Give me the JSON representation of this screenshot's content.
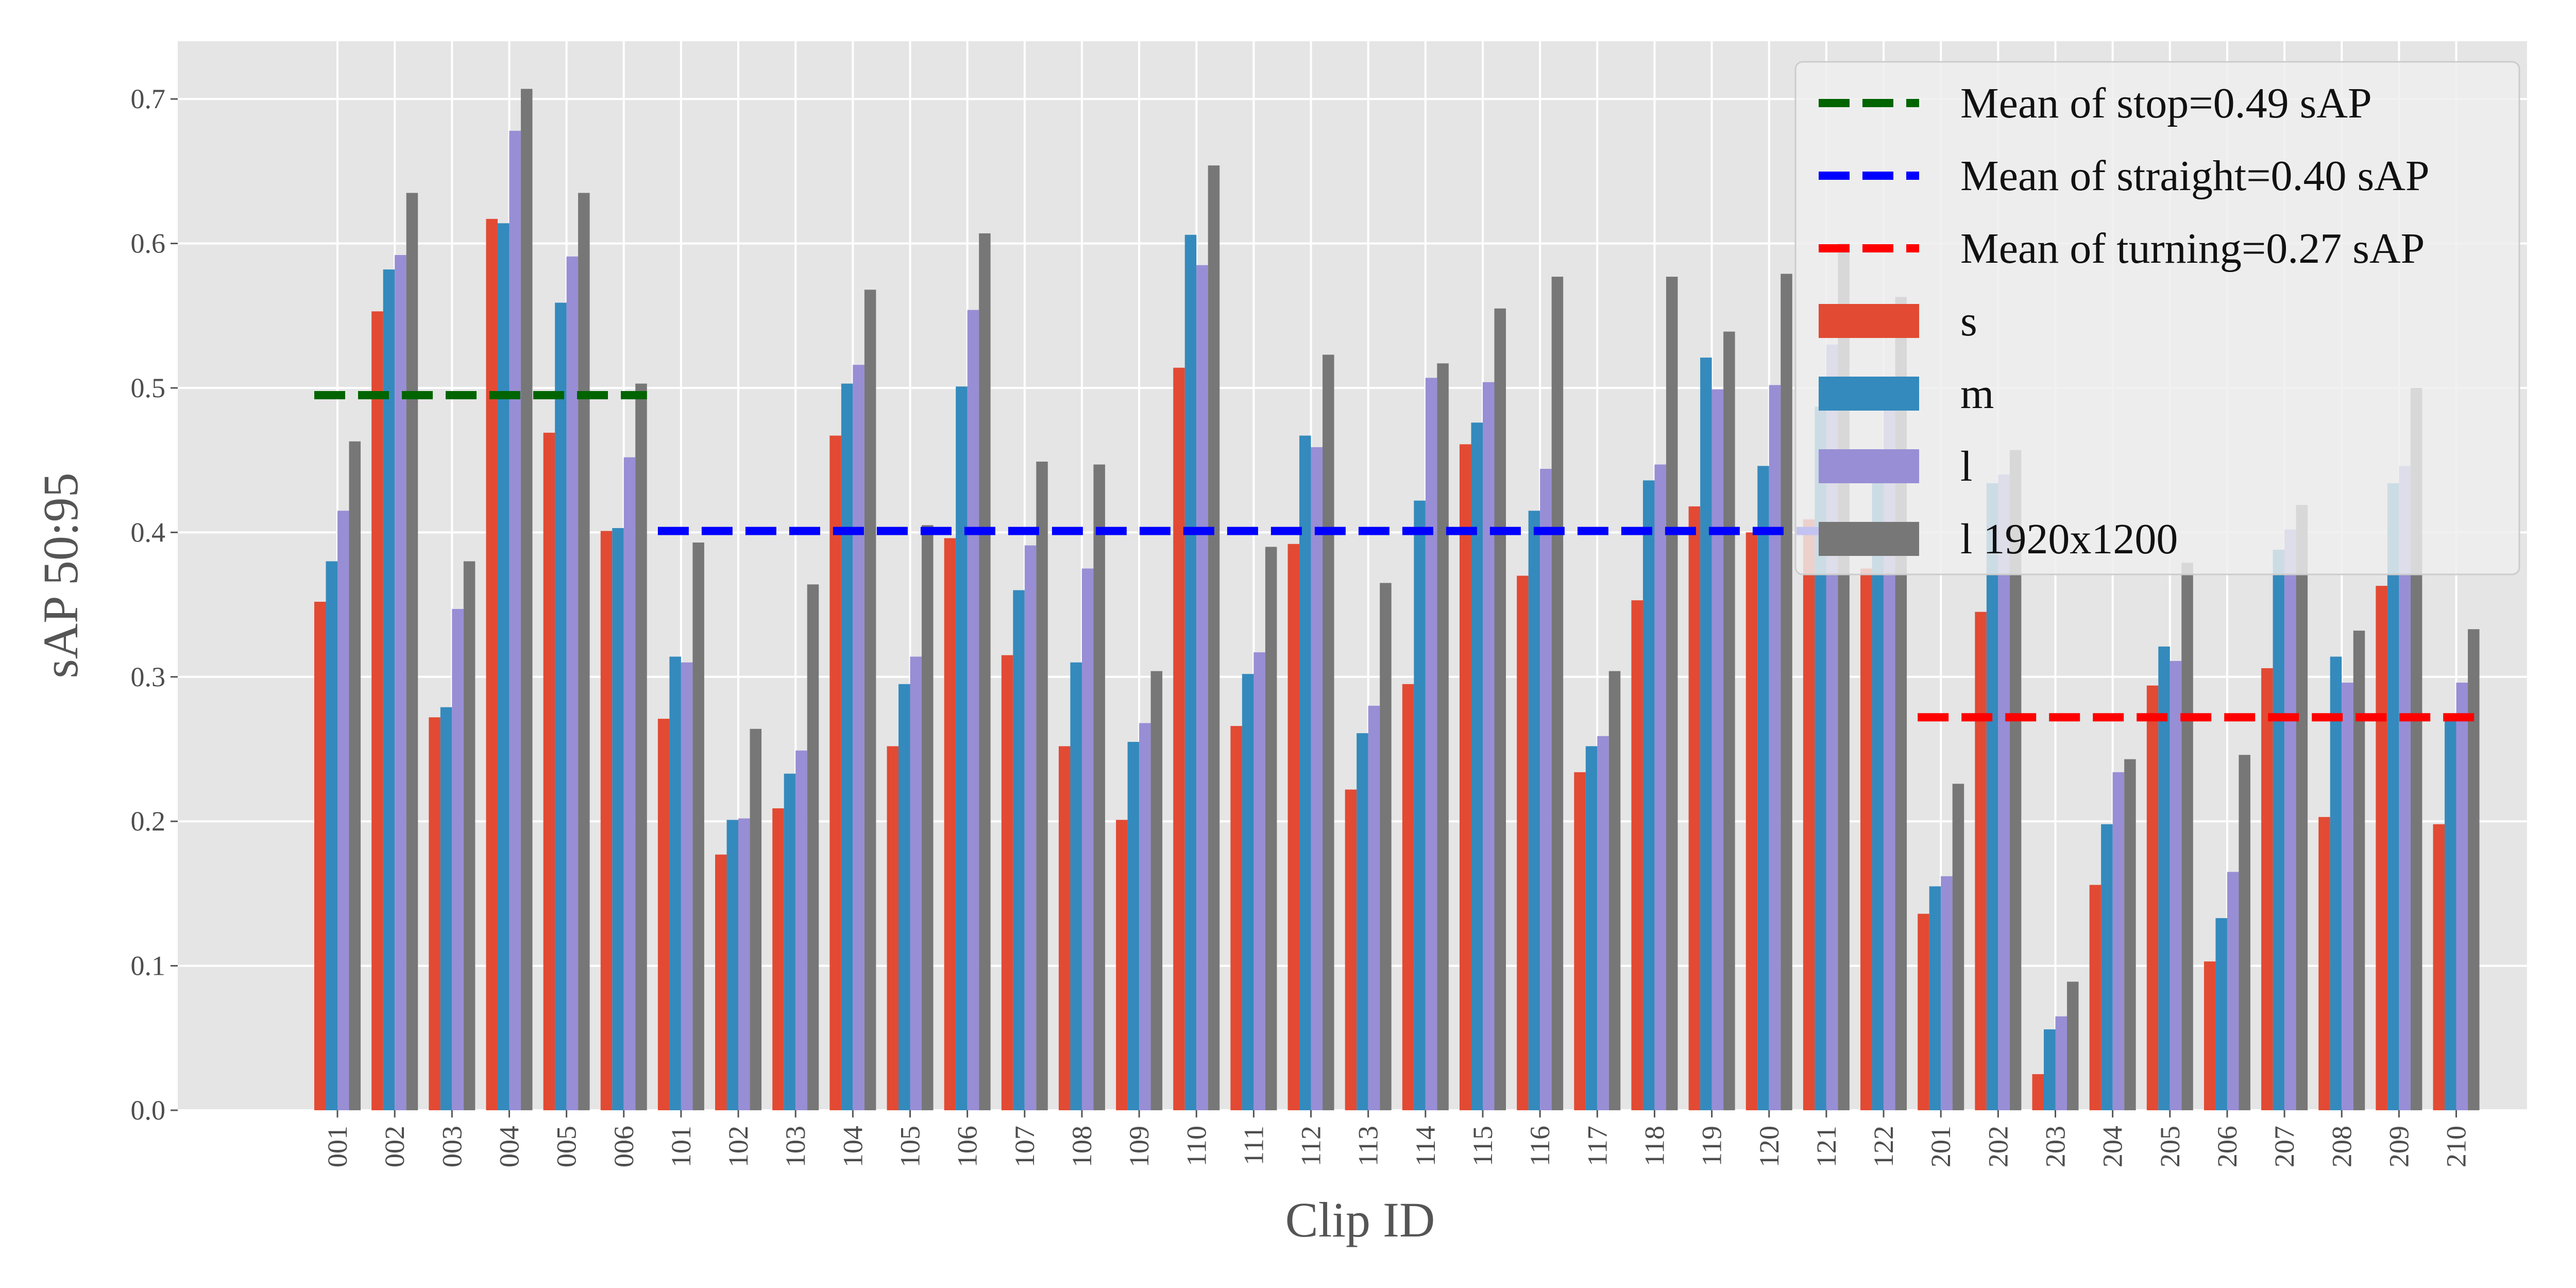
{
  "chart_data": {
    "type": "bar",
    "xlabel": "Clip ID",
    "ylabel": "sAP 50:95",
    "ylim": [
      0,
      0.74
    ],
    "yticks": [
      "0.0",
      "0.1",
      "0.2",
      "0.3",
      "0.4",
      "0.5",
      "0.6",
      "0.7"
    ],
    "grid": true,
    "legend_position": "top-right",
    "categories": [
      "001",
      "002",
      "003",
      "004",
      "005",
      "006",
      "101",
      "102",
      "103",
      "104",
      "105",
      "106",
      "107",
      "108",
      "109",
      "110",
      "111",
      "112",
      "113",
      "114",
      "115",
      "116",
      "117",
      "118",
      "119",
      "120",
      "121",
      "122",
      "201",
      "202",
      "203",
      "204",
      "205",
      "206",
      "207",
      "208",
      "209",
      "210"
    ],
    "series": [
      {
        "name": "s",
        "color": "#e24a33",
        "values": [
          0.352,
          0.553,
          0.272,
          0.617,
          0.469,
          0.401,
          0.271,
          0.177,
          0.209,
          0.467,
          0.252,
          0.396,
          0.315,
          0.252,
          0.201,
          0.514,
          0.266,
          0.392,
          0.222,
          0.295,
          0.461,
          0.37,
          0.234,
          0.353,
          0.418,
          0.4,
          0.409,
          0.375,
          0.136,
          0.345,
          0.025,
          0.156,
          0.294,
          0.103,
          0.306,
          0.203,
          0.363,
          0.198
        ]
      },
      {
        "name": "m",
        "color": "#348abd",
        "values": [
          0.38,
          0.582,
          0.279,
          0.614,
          0.559,
          0.403,
          0.314,
          0.201,
          0.233,
          0.503,
          0.295,
          0.501,
          0.36,
          0.31,
          0.255,
          0.606,
          0.302,
          0.467,
          0.261,
          0.422,
          0.476,
          0.415,
          0.252,
          0.436,
          0.521,
          0.446,
          0.487,
          0.45,
          0.155,
          0.434,
          0.056,
          0.198,
          0.321,
          0.133,
          0.388,
          0.314,
          0.434,
          0.27
        ]
      },
      {
        "name": "l",
        "color": "#988ed5",
        "values": [
          0.415,
          0.592,
          0.347,
          0.678,
          0.591,
          0.452,
          0.31,
          0.202,
          0.249,
          0.516,
          0.314,
          0.554,
          0.391,
          0.375,
          0.268,
          0.585,
          0.317,
          0.459,
          0.28,
          0.507,
          0.504,
          0.444,
          0.259,
          0.447,
          0.499,
          0.502,
          0.53,
          0.5,
          0.162,
          0.44,
          0.065,
          0.234,
          0.311,
          0.165,
          0.402,
          0.296,
          0.446,
          0.296
        ]
      },
      {
        "name": "l 1920x1200",
        "color": "#777777",
        "values": [
          0.463,
          0.635,
          0.38,
          0.707,
          0.635,
          0.503,
          0.393,
          0.264,
          0.364,
          0.568,
          0.405,
          0.607,
          0.449,
          0.447,
          0.304,
          0.654,
          0.39,
          0.523,
          0.365,
          0.517,
          0.555,
          0.577,
          0.304,
          0.577,
          0.539,
          0.579,
          0.6,
          0.563,
          0.226,
          0.457,
          0.089,
          0.243,
          0.379,
          0.246,
          0.419,
          0.332,
          0.5,
          0.333
        ]
      }
    ],
    "mean_lines": [
      {
        "label": "Mean of stop=0.49 sAP",
        "color": "#006400",
        "value": 0.495,
        "from": "001",
        "to": "006"
      },
      {
        "label": "Mean of straight=0.40 sAP",
        "color": "#0000ff",
        "value": 0.401,
        "from": "101",
        "to": "122"
      },
      {
        "label": "Mean of turning=0.27 sAP",
        "color": "#ff0000",
        "value": 0.272,
        "from": "201",
        "to": "210"
      }
    ]
  }
}
